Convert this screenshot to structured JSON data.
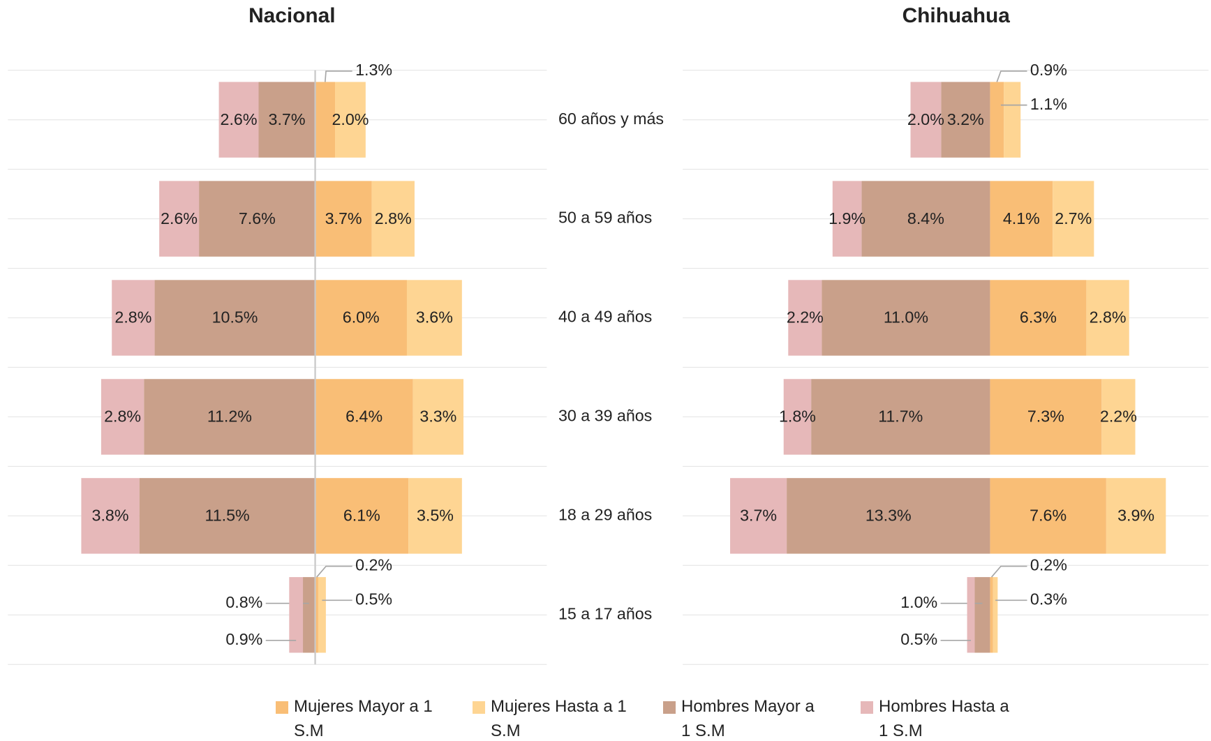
{
  "chart_data": [
    {
      "type": "bar",
      "title": "Nacional",
      "categories": [
        "60 años y más",
        "50 a 59 años",
        "40 a 49 años",
        "30 a 39 años",
        "18 a 29 años",
        "15 a 17 años"
      ],
      "series": [
        {
          "name": "Mujeres Mayor a 1 S.M",
          "color": "#f9be76",
          "values": [
            1.3,
            3.7,
            6.0,
            6.4,
            6.1,
            0.2
          ],
          "value_labels": [
            "1.3%",
            "3.7%",
            "6.0%",
            "6.4%",
            "6.1%",
            "0.2%"
          ]
        },
        {
          "name": "Mujeres Hasta a 1 S.M",
          "color": "#fed593",
          "values": [
            2.0,
            2.8,
            3.6,
            3.3,
            3.5,
            0.5
          ],
          "value_labels": [
            "2.0%",
            "2.8%",
            "3.6%",
            "3.3%",
            "3.5%",
            "0.5%"
          ]
        },
        {
          "name": "Hombres Mayor a 1 S.M",
          "color": "#c9a08a",
          "values": [
            3.7,
            7.6,
            10.5,
            11.2,
            11.5,
            0.8
          ],
          "value_labels": [
            "3.7%",
            "7.6%",
            "10.5%",
            "11.2%",
            "11.5%",
            "0.8%"
          ]
        },
        {
          "name": "Hombres Hasta a 1 S.M",
          "color": "#e6b8b9",
          "values": [
            2.6,
            2.6,
            2.8,
            2.8,
            3.8,
            0.9
          ],
          "value_labels": [
            "2.6%",
            "2.6%",
            "2.8%",
            "2.8%",
            "3.8%",
            "0.9%"
          ]
        }
      ]
    },
    {
      "type": "bar",
      "title": "Chihuahua",
      "series": [
        {
          "name": "Mujeres Mayor a 1 S.M",
          "color": "#f9be76",
          "values": [
            0.9,
            4.1,
            6.3,
            7.3,
            7.6,
            0.2
          ],
          "value_labels": [
            "0.9%",
            "4.1%",
            "6.3%",
            "7.3%",
            "7.6%",
            "0.2%"
          ]
        },
        {
          "name": "Mujeres Hasta a 1 S.M",
          "color": "#fed593",
          "values": [
            1.1,
            2.7,
            2.8,
            2.2,
            3.9,
            0.3
          ],
          "value_labels": [
            "1.1%",
            "2.7%",
            "2.8%",
            "2.2%",
            "3.9%",
            "0.3%"
          ]
        },
        {
          "name": "Hombres Mayor a 1 S.M",
          "color": "#c9a08a",
          "values": [
            3.2,
            8.4,
            11.0,
            11.7,
            13.3,
            1.0
          ],
          "value_labels": [
            "3.2%",
            "8.4%",
            "11.0%",
            "11.7%",
            "13.3%",
            "1.0%"
          ]
        },
        {
          "name": "Hombres Hasta a 1 S.M",
          "color": "#e6b8b9",
          "values": [
            2.0,
            1.9,
            2.2,
            1.8,
            3.7,
            0.5
          ],
          "value_labels": [
            "2.0%",
            "1.9%",
            "2.2%",
            "1.8%",
            "3.7%",
            "0.5%"
          ]
        }
      ]
    }
  ]
}
